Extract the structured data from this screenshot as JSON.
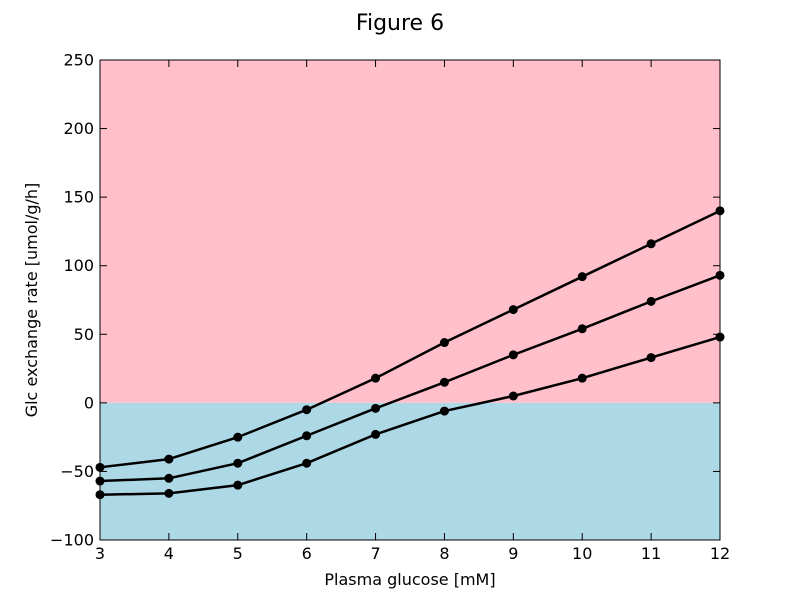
{
  "chart_data": {
    "type": "line",
    "title": "Figure 6",
    "xlabel": "Plasma glucose [mM]",
    "ylabel": "Glc exchange rate [umol/g/h]",
    "xlim": [
      3,
      12
    ],
    "ylim": [
      -100,
      250
    ],
    "xticks": [
      3,
      4,
      5,
      6,
      7,
      8,
      9,
      10,
      11,
      12
    ],
    "yticks": [
      -100,
      -50,
      0,
      50,
      100,
      150,
      200,
      250
    ],
    "x": [
      3,
      4,
      5,
      6,
      7,
      8,
      9,
      10,
      11,
      12
    ],
    "series": [
      {
        "values": [
          -47,
          -41,
          -25,
          -5,
          18,
          44,
          68,
          92,
          116,
          140
        ]
      },
      {
        "values": [
          -57,
          -55,
          -44,
          -24,
          -4,
          15,
          35,
          54,
          74,
          93
        ]
      },
      {
        "values": [
          -67,
          -66,
          -60,
          -44,
          -23,
          -6,
          5,
          18,
          33,
          48
        ]
      }
    ],
    "background_regions": [
      {
        "from": 0,
        "to": 250,
        "color": "#ffc0cb"
      },
      {
        "from": -100,
        "to": 0,
        "color": "#add8e6"
      }
    ],
    "line_color": "#000000",
    "grid": false,
    "legend": "none"
  }
}
